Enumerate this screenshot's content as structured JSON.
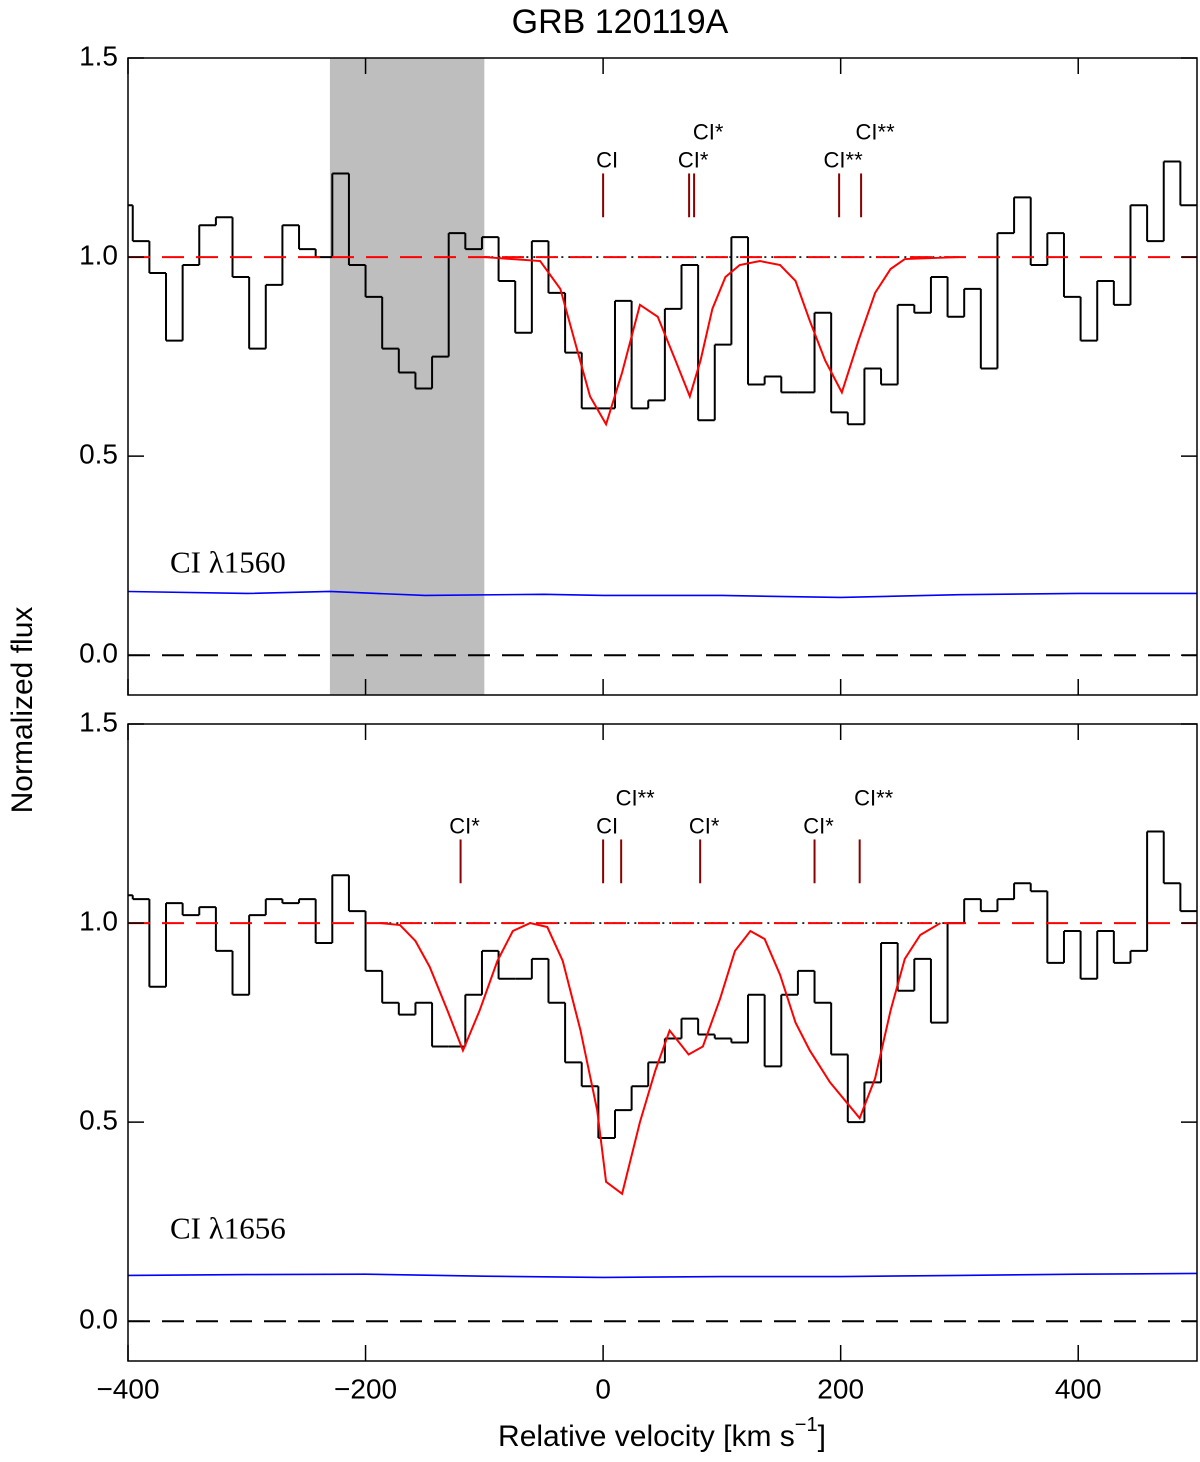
{
  "title": "GRB 120119A",
  "ylabel": "Normalized flux",
  "xlabel": {
    "text": "Relative velocity  [km s",
    "sup": "−1",
    "end": "]"
  },
  "chart_data": [
    {
      "type": "step",
      "annotation": "CI λ1560",
      "xlim": [
        -400,
        500
      ],
      "ylim": [
        -0.1,
        1.5
      ],
      "xticks": [
        -400,
        -200,
        0,
        200,
        400
      ],
      "xtick_labels": false,
      "yticks": [
        {
          "value": 0,
          "label": "0.0"
        },
        0.5,
        {
          "value": 1,
          "label": "1.0"
        },
        1.5
      ],
      "masked_region": {
        "range": [
          -230,
          -100
        ],
        "color": "#bebebe"
      },
      "spectrum": {
        "color": "#000000",
        "bins": [
          -410,
          -396,
          -382,
          -368,
          -354,
          -340,
          -326,
          -312,
          -298,
          -284,
          -270,
          -256,
          -242,
          -228,
          -214,
          -200,
          -186,
          -172,
          -158,
          -144,
          -130,
          -116,
          -102,
          -88,
          -74,
          -60,
          -46,
          -32,
          -18,
          -4,
          10,
          24,
          38,
          52,
          66,
          80,
          94,
          108,
          122,
          136,
          150,
          164,
          178,
          192,
          206,
          220,
          234,
          248,
          262,
          276,
          290,
          304,
          318,
          332,
          346,
          360,
          374,
          388,
          402,
          416,
          430,
          444,
          458,
          472,
          486,
          500
        ],
        "values": [
          1.13,
          1.04,
          0.96,
          0.79,
          0.98,
          1.08,
          1.1,
          0.95,
          0.77,
          0.93,
          1.08,
          1.02,
          1.0,
          1.21,
          0.98,
          0.9,
          0.77,
          0.71,
          0.67,
          0.75,
          1.06,
          1.02,
          1.05,
          0.94,
          0.81,
          1.04,
          0.91,
          0.76,
          0.62,
          0.62,
          0.89,
          0.62,
          0.64,
          0.87,
          0.98,
          0.59,
          0.78,
          1.05,
          0.68,
          0.7,
          0.66,
          0.66,
          0.86,
          0.61,
          0.58,
          0.72,
          0.68,
          0.88,
          0.86,
          0.95,
          0.85,
          0.92,
          0.72,
          1.06,
          1.15,
          0.98,
          1.06,
          0.9,
          0.79,
          0.94,
          0.88,
          1.13,
          1.04,
          1.24,
          1.13
        ]
      },
      "model": {
        "color": "#ff0000",
        "x": [
          -100,
          -53,
          -36,
          -24,
          -11,
          2.5,
          16,
          31,
          46,
          61,
          73,
          82,
          92,
          103,
          115,
          132,
          149,
          162,
          174,
          187,
          201,
          215,
          229,
          242,
          254,
          300
        ],
        "values": [
          1.0,
          0.99,
          0.92,
          0.79,
          0.65,
          0.58,
          0.71,
          0.88,
          0.85,
          0.74,
          0.65,
          0.74,
          0.87,
          0.95,
          0.98,
          0.99,
          0.98,
          0.94,
          0.84,
          0.74,
          0.66,
          0.79,
          0.91,
          0.97,
          0.995,
          1.0
        ]
      },
      "error": {
        "color": "#0000ff",
        "x": [
          -400,
          -300,
          -230,
          -150,
          -50,
          0,
          100,
          200,
          300,
          400,
          500
        ],
        "values": [
          0.16,
          0.155,
          0.16,
          0.15,
          0.153,
          0.15,
          0.15,
          0.145,
          0.152,
          0.155,
          0.155
        ]
      },
      "continuum": {
        "value": 1,
        "color": "#ff0000"
      },
      "continuum_region": {
        "range": [
          -100,
          300
        ],
        "value": 1
      },
      "zero_level": 0,
      "transitions": {
        "color": "#8b0000",
        "labels": [
          "CI",
          "CI*",
          "CI*",
          "CI**",
          "CI**"
        ],
        "velocity": [
          0,
          72.4,
          76.6,
          198.7,
          217.2
        ]
      }
    },
    {
      "type": "step",
      "annotation": "CI λ1656",
      "xlim": [
        -400,
        500
      ],
      "ylim": [
        -0.1,
        1.5
      ],
      "xticks": [
        {
          "value": -400,
          "label": "−400"
        },
        {
          "value": -200,
          "label": "−200"
        },
        0,
        200,
        400
      ],
      "xtick_labels": true,
      "yticks": [
        {
          "value": 0,
          "label": "0.0"
        },
        0.5,
        {
          "value": 1,
          "label": "1.0"
        },
        1.5
      ],
      "spectrum": {
        "color": "#000000",
        "bins": [
          -410,
          -396,
          -382,
          -368,
          -354,
          -340,
          -326,
          -312,
          -298,
          -284,
          -270,
          -256,
          -242,
          -228,
          -214,
          -200,
          -186,
          -172,
          -158,
          -144,
          -130,
          -116,
          -102,
          -88,
          -74,
          -60,
          -46,
          -32,
          -18,
          -4,
          10,
          24,
          38,
          52,
          66,
          80,
          94,
          108,
          122,
          136,
          150,
          164,
          178,
          192,
          206,
          220,
          234,
          248,
          262,
          276,
          290,
          304,
          318,
          332,
          346,
          360,
          374,
          388,
          402,
          416,
          430,
          444,
          458,
          472,
          486,
          500
        ],
        "values": [
          1.07,
          1.06,
          0.84,
          1.05,
          1.02,
          1.04,
          0.93,
          0.82,
          1.02,
          1.06,
          1.05,
          1.06,
          0.95,
          1.12,
          1.03,
          0.88,
          0.8,
          0.77,
          0.8,
          0.69,
          0.69,
          0.82,
          0.93,
          0.86,
          0.86,
          0.91,
          0.8,
          0.65,
          0.59,
          0.46,
          0.53,
          0.59,
          0.65,
          0.71,
          0.76,
          0.72,
          0.71,
          0.7,
          0.82,
          0.64,
          0.82,
          0.88,
          0.8,
          0.67,
          0.5,
          0.6,
          0.95,
          0.83,
          0.91,
          0.75,
          1.0,
          1.06,
          1.03,
          1.06,
          1.1,
          1.08,
          0.9,
          0.98,
          0.86,
          0.98,
          0.9,
          0.93,
          1.23,
          1.1,
          1.03
        ]
      },
      "model": {
        "color": "#ff0000",
        "x": [
          -188,
          -171,
          -158,
          -146,
          -131,
          -118,
          -104,
          -89,
          -76,
          -61.5,
          -47,
          -34,
          -19,
          -5,
          2.5,
          16,
          31,
          44,
          56,
          72,
          84,
          98.5,
          111,
          124,
          136,
          149,
          162,
          174,
          191,
          216,
          229,
          242,
          254,
          267,
          284
        ],
        "values": [
          1.0,
          0.995,
          0.955,
          0.89,
          0.78,
          0.68,
          0.78,
          0.905,
          0.98,
          1.0,
          0.99,
          0.905,
          0.73,
          0.53,
          0.35,
          0.32,
          0.5,
          0.63,
          0.73,
          0.67,
          0.69,
          0.81,
          0.93,
          0.98,
          0.96,
          0.87,
          0.75,
          0.68,
          0.6,
          0.51,
          0.61,
          0.78,
          0.91,
          0.97,
          1.0
        ]
      },
      "error": {
        "color": "#0000ff",
        "x": [
          -400,
          -300,
          -200,
          -100,
          0,
          100,
          200,
          300,
          400,
          500
        ],
        "values": [
          0.115,
          0.117,
          0.118,
          0.113,
          0.11,
          0.112,
          0.112,
          0.115,
          0.118,
          0.12
        ]
      },
      "continuum": {
        "value": 1,
        "color": "#ff0000"
      },
      "continuum_region": {
        "range": [
          -180,
          290
        ],
        "value": 1
      },
      "zero_level": 0,
      "transitions": {
        "color": "#8b0000",
        "labels": [
          "CI*",
          "CI",
          "CI**",
          "CI*",
          "CI*",
          "CI**"
        ],
        "velocity": [
          -120,
          0,
          15.2,
          81.7,
          178,
          216
        ]
      }
    }
  ]
}
